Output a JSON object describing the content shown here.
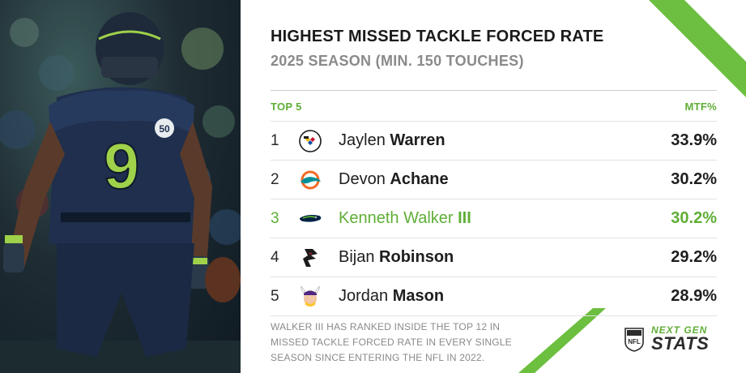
{
  "header": {
    "title": "HIGHEST MISSED TACKLE FORCED RATE",
    "subtitle": "2025 SEASON (MIN. 150 TOUCHES)"
  },
  "table": {
    "col_left": "TOP 5",
    "col_right": "MTF%",
    "rows": [
      {
        "rank": "1",
        "team_logo": "steelers-logo",
        "first": "Jaylen",
        "last": "Warren",
        "value": "33.9%"
      },
      {
        "rank": "2",
        "team_logo": "dolphins-logo",
        "first": "Devon",
        "last": "Achane",
        "value": "30.2%"
      },
      {
        "rank": "3",
        "team_logo": "seahawks-logo",
        "first": "Kenneth Walker",
        "last": "III",
        "value": "30.2%",
        "highlight": true
      },
      {
        "rank": "4",
        "team_logo": "falcons-logo",
        "first": "Bijan",
        "last": "Robinson",
        "value": "29.2%"
      },
      {
        "rank": "5",
        "team_logo": "vikings-logo",
        "first": "Jordan",
        "last": "Mason",
        "value": "28.9%"
      }
    ]
  },
  "footnote": "WALKER III HAS RANKED INSIDE THE TOP 12 IN MISSED TACKLE FORCED RATE IN EVERY SINGLE SEASON SINCE ENTERING THE NFL IN 2022.",
  "brand": {
    "top": "NEXT GEN",
    "bottom": "STATS",
    "shield_text": "NFL"
  },
  "photo": {
    "jersey_number": "9",
    "patch": "50"
  },
  "colors": {
    "accent": "#5fae36",
    "navy": "#1f2f4d",
    "action_green": "#9fd14a"
  }
}
